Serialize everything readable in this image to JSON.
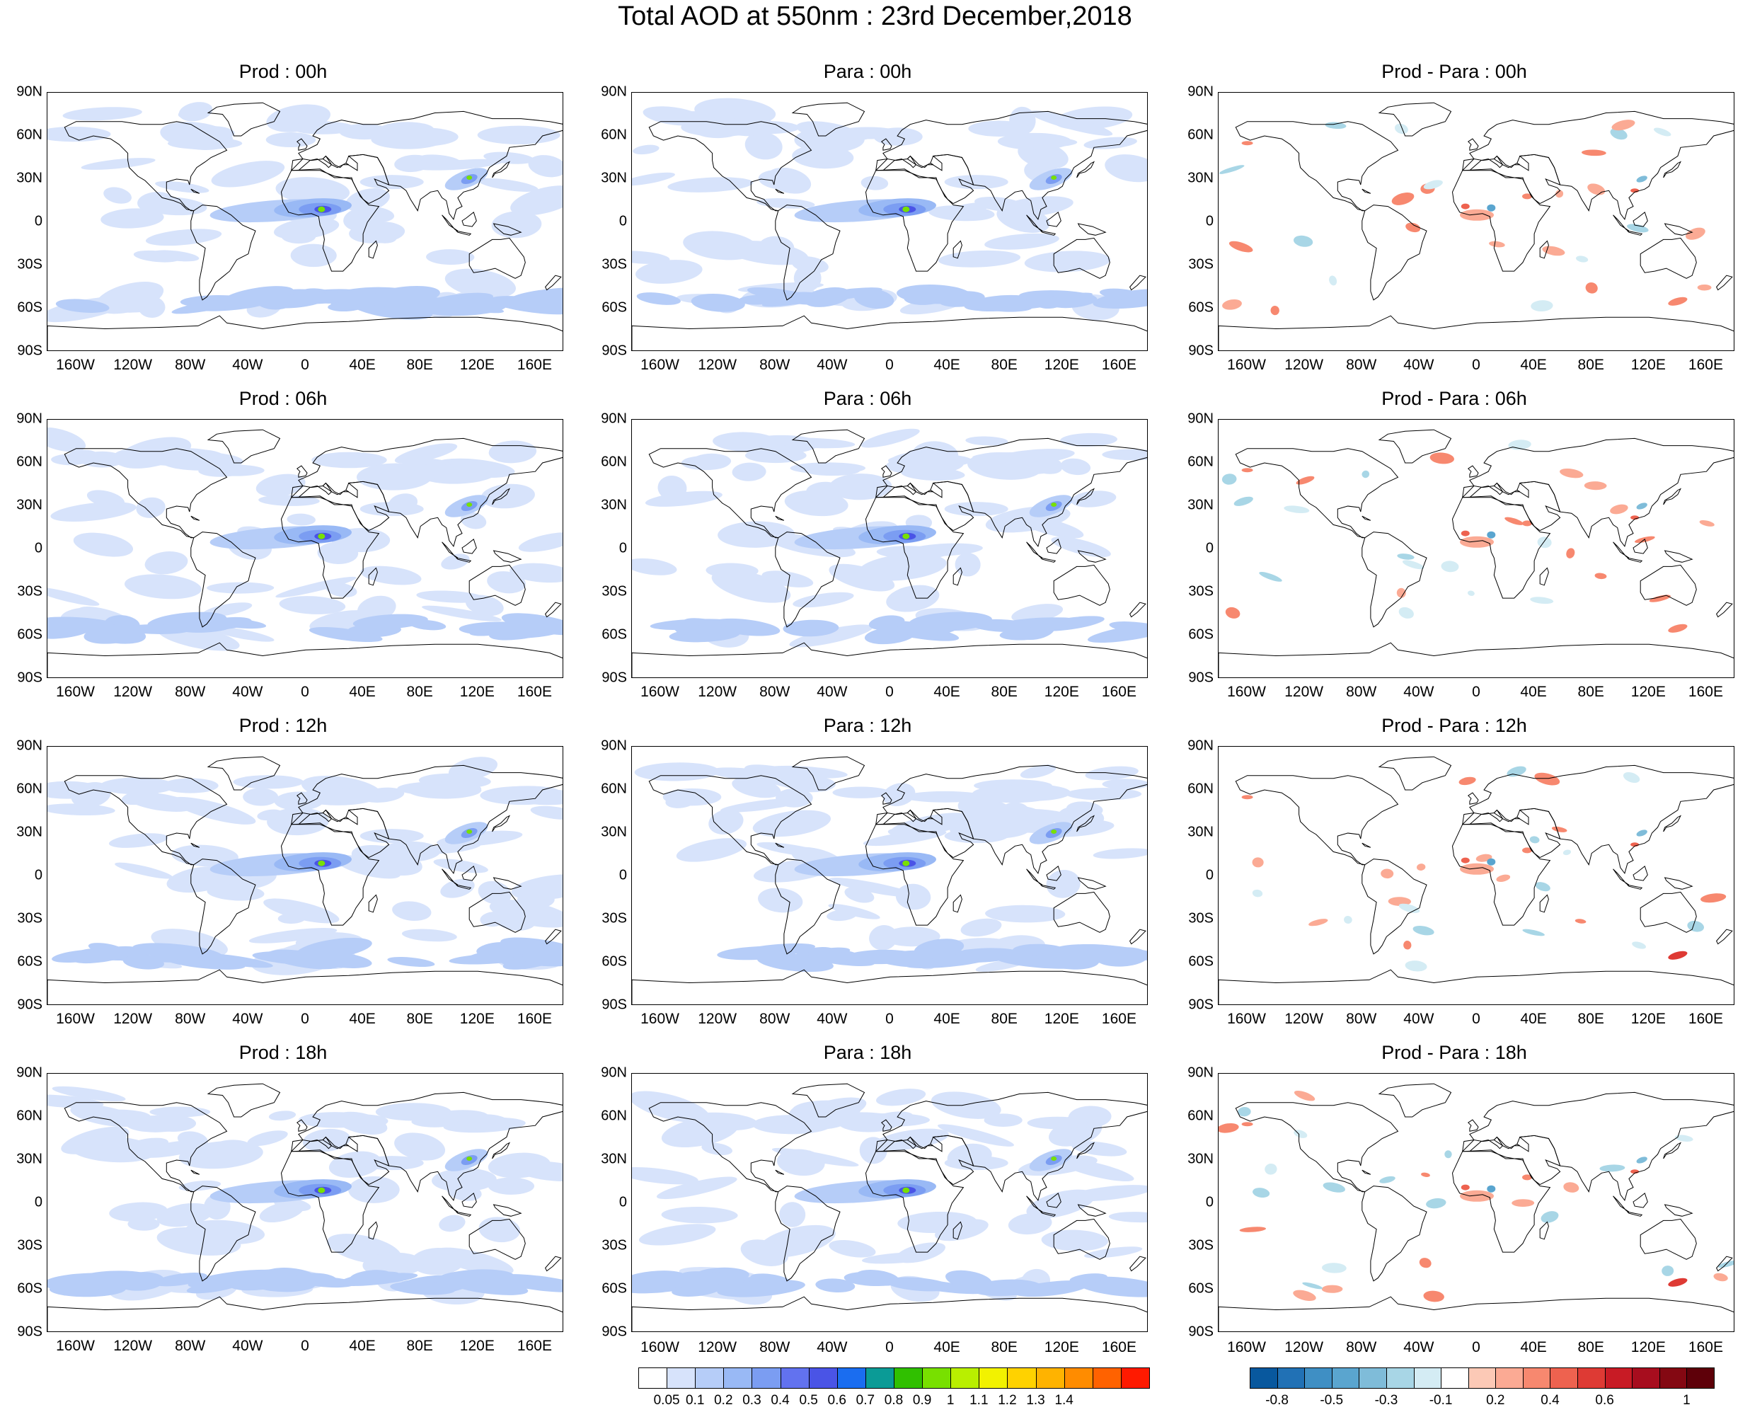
{
  "title": "Total AOD at 550nm : 23rd December,2018",
  "lat_labels": [
    "90N",
    "60N",
    "30N",
    "0",
    "30S",
    "60S",
    "90S"
  ],
  "lon_labels": [
    "160W",
    "120W",
    "80W",
    "40W",
    "0",
    "40E",
    "80E",
    "120E",
    "160E"
  ],
  "panels": [
    {
      "title": "Prod : 00h",
      "kind": "aod",
      "variant": 0
    },
    {
      "title": "Para : 00h",
      "kind": "aod",
      "variant": 1
    },
    {
      "title": "Prod - Para : 00h",
      "kind": "diff",
      "variant": 0
    },
    {
      "title": "Prod : 06h",
      "kind": "aod",
      "variant": 2
    },
    {
      "title": "Para : 06h",
      "kind": "aod",
      "variant": 3
    },
    {
      "title": "Prod - Para : 06h",
      "kind": "diff",
      "variant": 1
    },
    {
      "title": "Prod : 12h",
      "kind": "aod",
      "variant": 4
    },
    {
      "title": "Para : 12h",
      "kind": "aod",
      "variant": 5
    },
    {
      "title": "Prod - Para : 12h",
      "kind": "diff",
      "variant": 2
    },
    {
      "title": "Prod : 18h",
      "kind": "aod",
      "variant": 6
    },
    {
      "title": "Para : 18h",
      "kind": "aod",
      "variant": 7
    },
    {
      "title": "Prod - Para : 18h",
      "kind": "diff",
      "variant": 3
    }
  ],
  "aod_colorbar": {
    "colors": [
      "#ffffff",
      "#d7e3fb",
      "#b6cdf8",
      "#99b9f5",
      "#7b9df2",
      "#6272ef",
      "#4a54e6",
      "#1a6df0",
      "#0b9b96",
      "#30c000",
      "#78e000",
      "#b9ef00",
      "#f2f200",
      "#ffd200",
      "#ffb300",
      "#ff8c00",
      "#ff6200",
      "#ff1a00"
    ],
    "labels": [
      "0.05",
      "0.1",
      "0.2",
      "0.3",
      "0.4",
      "0.5",
      "0.6",
      "0.7",
      "0.8",
      "0.9",
      "1",
      "1.1",
      "1.2",
      "1.3",
      "1.4"
    ]
  },
  "diff_colorbar": {
    "colors": [
      "#08589e",
      "#2171b5",
      "#3f8fc4",
      "#5aa5cf",
      "#7fbcd9",
      "#a8d6e6",
      "#d4ecf4",
      "#ffffff",
      "#fcc9b6",
      "#fbaa94",
      "#f7886f",
      "#ee624f",
      "#de3a34",
      "#c81b25",
      "#a70d1e",
      "#840812",
      "#5e0009"
    ],
    "labels": [
      "-0.8",
      "-0.5",
      "-0.3",
      "-0.1",
      "0.2",
      "0.4",
      "0.6",
      "1"
    ]
  }
}
